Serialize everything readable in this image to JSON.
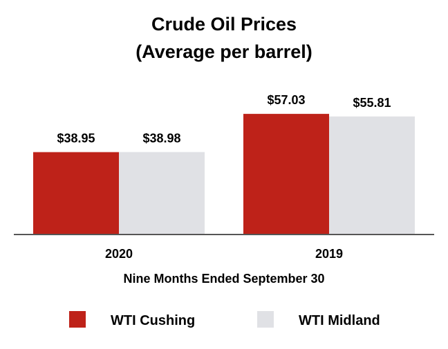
{
  "chart_data": {
    "type": "bar",
    "title": "Crude Oil Prices",
    "subtitle": "(Average per barrel)",
    "categories": [
      "2020",
      "2019"
    ],
    "xlabel": "Nine Months Ended September 30",
    "ylabel": "",
    "ylim": [
      0,
      75
    ],
    "grid": false,
    "legend_position": "bottom",
    "series": [
      {
        "name": "WTI Cushing",
        "color": "#be2219",
        "values": [
          38.95,
          57.03
        ],
        "labels": [
          "$38.95",
          "$57.03"
        ]
      },
      {
        "name": "WTI Midland",
        "color": "#e0e1e5",
        "values": [
          38.98,
          55.81
        ],
        "labels": [
          "$38.98",
          "$55.81"
        ]
      }
    ]
  }
}
